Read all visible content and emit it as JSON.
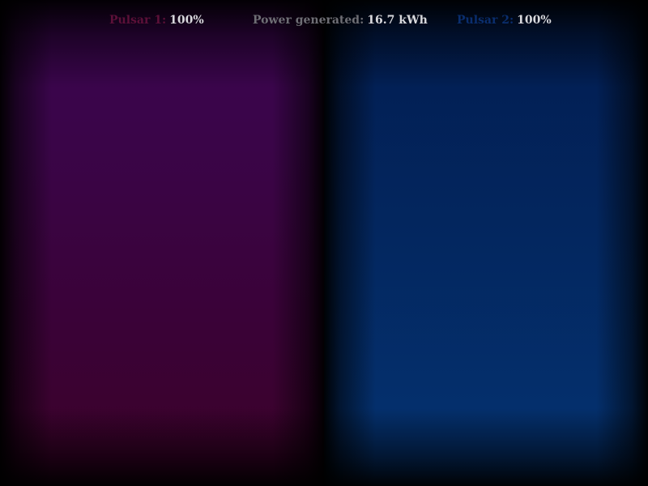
{
  "hud": {
    "pulsar1": {
      "label": "Pulsar 1:",
      "value": "100%"
    },
    "power": {
      "label": "Power generated:",
      "value": "16.7 kWh"
    },
    "pulsar2": {
      "label": "Pulsar 2:",
      "value": "100%"
    }
  },
  "colors": {
    "pulsar1_label": "#5c1038",
    "power_label": "#6e6e74",
    "pulsar2_label": "#0a2e6e",
    "value_text": "#d8d8dc",
    "pulsar1_field_top": "#3a0550",
    "pulsar1_field_bottom": "#3c0128",
    "pulsar2_field_top": "#021c50",
    "pulsar2_field_bottom": "#043372"
  }
}
